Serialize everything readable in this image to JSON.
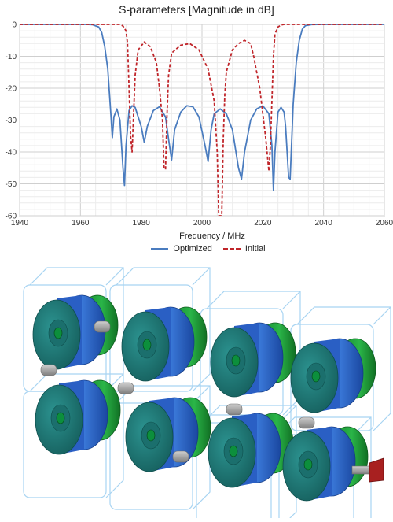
{
  "chart_data": {
    "type": "line",
    "title": "S-parameters [Magnitude in dB]",
    "xlabel": "Frequency / MHz",
    "ylabel": "",
    "xlim": [
      1940,
      2060
    ],
    "ylim": [
      -60,
      0
    ],
    "xticks": [
      1940,
      1960,
      1980,
      2000,
      2020,
      2040,
      2060
    ],
    "yticks": [
      0,
      -10,
      -20,
      -30,
      -40,
      -50,
      -60
    ],
    "grid": true,
    "legend_position": "bottom-center",
    "series": [
      {
        "name": "Optimized",
        "color": "#4a7cbf",
        "dash": "solid",
        "x": [
          1940,
          1962,
          1964,
          1966,
          1967,
          1968,
          1969,
          1970,
          1970.5,
          1971,
          1972,
          1973,
          1974,
          1974.5,
          1975,
          1976,
          1977,
          1978,
          1980,
          1981,
          1982,
          1984,
          1986,
          1988,
          1989,
          1990,
          1991,
          1993,
          1995,
          1997,
          1999,
          2001,
          2002,
          2003,
          2004,
          2006,
          2008,
          2010,
          2012,
          2013,
          2014,
          2016,
          2018,
          2020,
          2022,
          2023,
          2023.5,
          2024,
          2025,
          2026,
          2027,
          2027.5,
          2028,
          2028.5,
          2029,
          2030,
          2031,
          2032,
          2033,
          2034,
          2036,
          2040,
          2060
        ],
        "y": [
          0,
          0,
          -0.1,
          -0.8,
          -2.5,
          -7,
          -14,
          -28,
          -35.5,
          -29,
          -26.5,
          -30,
          -45,
          -50.5,
          -38,
          -27,
          -25.5,
          -26,
          -32,
          -37,
          -32,
          -27,
          -25.8,
          -29,
          -36,
          -42.5,
          -33,
          -27.5,
          -25.5,
          -25.8,
          -29,
          -38,
          -43,
          -33,
          -28,
          -26.5,
          -28,
          -33,
          -45,
          -48.5,
          -40,
          -30,
          -26.5,
          -25.5,
          -28,
          -38,
          -52,
          -40,
          -27.5,
          -26,
          -27.5,
          -32,
          -40,
          -48,
          -48.5,
          -25,
          -12,
          -5,
          -1.5,
          -0.4,
          -0.05,
          0,
          0
        ]
      },
      {
        "name": "Initial",
        "color": "#c0252a",
        "dash": "dashed",
        "x": [
          1940,
          1973,
          1974,
          1975,
          1975.5,
          1976,
          1976.5,
          1977,
          1977.5,
          1978,
          1979,
          1981,
          1983,
          1985,
          1986,
          1987,
          1987.5,
          1988,
          1988.5,
          1989,
          1990,
          1993,
          1996,
          1999,
          2002,
          2004,
          2005,
          2005.5,
          2006,
          2006.5,
          2007,
          2007.5,
          2008,
          2010,
          2012,
          2014,
          2016,
          2017,
          2018,
          2019,
          2020,
          2021,
          2022,
          2022.5,
          2023,
          2023.5,
          2024,
          2025,
          2026,
          2027,
          2060
        ],
        "y": [
          0,
          0,
          -0.5,
          -2,
          -6,
          -20,
          -35,
          -40,
          -28,
          -16,
          -8,
          -5.5,
          -7,
          -12,
          -20,
          -30,
          -45,
          -45.5,
          -28,
          -16,
          -9,
          -6.5,
          -6,
          -8,
          -14,
          -24,
          -40,
          -60,
          -60,
          -60,
          -36,
          -22,
          -15,
          -8,
          -6,
          -5,
          -6,
          -10,
          -15,
          -20,
          -28,
          -36,
          -46,
          -38,
          -24,
          -10,
          -3,
          -0.8,
          -0.2,
          0,
          0
        ]
      }
    ]
  },
  "model_image": {
    "description_icon": "filter-cavity-3d-icon",
    "colors": {
      "frame": "#a8d4f2",
      "resonator_face": "#1f7a78",
      "resonator_ring": "#2a5fc4",
      "green_ring": "#1f9a3a",
      "screw": "#a8a8a8",
      "connector": "#a82020"
    }
  }
}
